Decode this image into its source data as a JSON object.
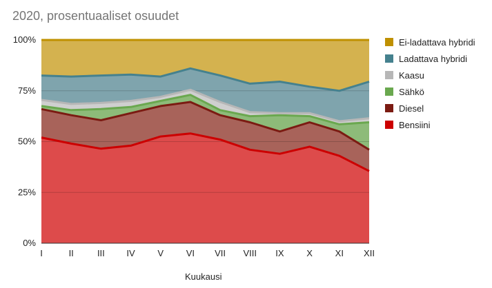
{
  "title": "2020, prosentuaaliset osuudet",
  "chart_data": {
    "type": "area",
    "stacked": true,
    "percent": true,
    "title": "2020, prosentuaaliset osuudet",
    "xlabel": "Kuukausi",
    "ylabel": "",
    "categories": [
      "I",
      "II",
      "III",
      "IV",
      "V",
      "VI",
      "VII",
      "VIII",
      "IX",
      "X",
      "XI",
      "XII"
    ],
    "y_ticks": [
      "0%",
      "25%",
      "50%",
      "75%",
      "100%"
    ],
    "ylim": [
      0,
      100
    ],
    "grid": true,
    "legend_position": "right",
    "series": [
      {
        "name": "Bensiini",
        "color": "#cc0000",
        "fill": "#dd4b4b",
        "values": [
          52,
          49,
          46.5,
          48,
          52.5,
          54,
          51,
          46,
          44,
          47.5,
          43,
          35.5
        ]
      },
      {
        "name": "Diesel",
        "color": "#7b1b12",
        "fill": "#a8635a",
        "values": [
          14,
          14,
          14,
          16,
          15,
          15.5,
          12,
          13.5,
          11,
          12,
          12,
          10.5
        ]
      },
      {
        "name": "Sähkö",
        "color": "#6aa84f",
        "fill": "#8dbb79",
        "values": [
          1.5,
          2.5,
          5.5,
          3,
          2.5,
          3.5,
          2.5,
          3,
          8,
          3,
          3.5,
          13.5
        ]
      },
      {
        "name": "Kaasu",
        "color": "#b7b7b7",
        "fill": "#cfcfcf",
        "values": [
          3,
          3,
          3,
          3,
          2,
          2.5,
          4,
          2,
          1,
          1.5,
          1.5,
          2
        ]
      },
      {
        "name": "Ladattava hybridi",
        "color": "#45818e",
        "fill": "#7fa4ad",
        "values": [
          12,
          13.5,
          13.5,
          13,
          10,
          10.5,
          13,
          14,
          15.5,
          13,
          15,
          18
        ]
      },
      {
        "name": "Ei-ladattava hybridi",
        "color": "#bf9000",
        "fill": "#d4b24f",
        "values": [
          17.5,
          18,
          17.5,
          17,
          18,
          14,
          17.5,
          21.5,
          20.5,
          23,
          25,
          20.5
        ]
      }
    ]
  }
}
